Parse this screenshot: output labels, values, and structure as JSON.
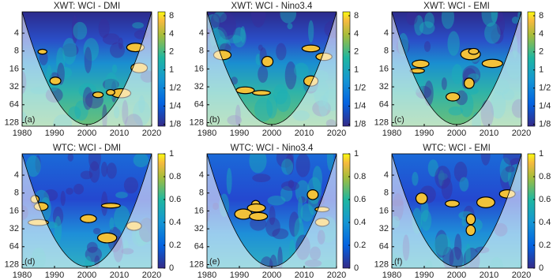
{
  "chart_data": [
    {
      "type": "heatmap",
      "kind": "xwt",
      "title": "XWT: WCI - DMI",
      "panel_label": "(a)",
      "xlim": [
        1980,
        2020
      ],
      "xticks": [
        1980,
        1990,
        2000,
        2010,
        2020
      ],
      "ylim": [
        1.75,
        147
      ],
      "y_log": true,
      "y_inverted": true,
      "yticks": [
        4,
        8,
        16,
        32,
        64,
        128
      ],
      "clim": [
        0.116,
        9.3
      ],
      "c_log": true,
      "cticks": [
        {
          "value": 0.125,
          "label": "1/8"
        },
        {
          "value": 0.25,
          "label": "1/4"
        },
        {
          "value": 0.5,
          "label": "1/2"
        },
        1,
        2,
        4,
        8
      ]
    },
    {
      "type": "heatmap",
      "kind": "xwt",
      "title": "XWT: WCI - Nino3.4",
      "panel_label": "(b)",
      "xlim": [
        1980,
        2020
      ],
      "xticks": [
        1980,
        1990,
        2000,
        2010,
        2020
      ],
      "ylim": [
        1.75,
        147
      ],
      "y_log": true,
      "y_inverted": true,
      "yticks": [
        4,
        8,
        16,
        32,
        64,
        128
      ],
      "clim": [
        0.116,
        9.3
      ],
      "c_log": true,
      "cticks": [
        {
          "value": 0.125,
          "label": "1/8"
        },
        {
          "value": 0.25,
          "label": "1/4"
        },
        {
          "value": 0.5,
          "label": "1/2"
        },
        1,
        2,
        4,
        8
      ]
    },
    {
      "type": "heatmap",
      "kind": "xwt",
      "title": "XWT: WCI - EMI",
      "panel_label": "(c)",
      "xlim": [
        1980,
        2020
      ],
      "xticks": [
        1980,
        1990,
        2000,
        2010,
        2020
      ],
      "ylim": [
        1.75,
        147
      ],
      "y_log": true,
      "y_inverted": true,
      "yticks": [
        4,
        8,
        16,
        32,
        64,
        128
      ],
      "clim": [
        0.116,
        9.3
      ],
      "c_log": true,
      "cticks": [
        {
          "value": 0.125,
          "label": "1/8"
        },
        {
          "value": 0.25,
          "label": "1/4"
        },
        {
          "value": 0.5,
          "label": "1/2"
        },
        1,
        2,
        4,
        8
      ]
    },
    {
      "type": "heatmap",
      "kind": "wtc",
      "title": "WTC: WCI - DMI",
      "panel_label": "(d)",
      "xlim": [
        1980,
        2020
      ],
      "xticks": [
        1980,
        1990,
        2000,
        2010,
        2020
      ],
      "ylim": [
        1.75,
        147
      ],
      "y_log": true,
      "y_inverted": true,
      "yticks": [
        4,
        8,
        16,
        32,
        64,
        128
      ],
      "clim": [
        0,
        1
      ],
      "c_log": false,
      "cticks": [
        0,
        0.2,
        0.4,
        0.6,
        0.8,
        1
      ]
    },
    {
      "type": "heatmap",
      "kind": "wtc",
      "title": "WTC: WCI - Nino3.4",
      "panel_label": "(e)",
      "xlim": [
        1980,
        2020
      ],
      "xticks": [
        1980,
        1990,
        2000,
        2010,
        2020
      ],
      "ylim": [
        1.75,
        147
      ],
      "y_log": true,
      "y_inverted": true,
      "yticks": [
        4,
        8,
        16,
        32,
        64,
        128
      ],
      "clim": [
        0,
        1
      ],
      "c_log": false,
      "cticks": [
        0,
        0.2,
        0.4,
        0.6,
        0.8,
        1
      ]
    },
    {
      "type": "heatmap",
      "kind": "wtc",
      "title": "WTC: WCI - EMI",
      "panel_label": "(f)",
      "xlim": [
        1980,
        2020
      ],
      "xticks": [
        1980,
        1990,
        2000,
        2010,
        2020
      ],
      "ylim": [
        1.75,
        147
      ],
      "y_log": true,
      "y_inverted": true,
      "yticks": [
        4,
        8,
        16,
        32,
        64,
        128
      ],
      "clim": [
        0,
        1
      ],
      "c_log": false,
      "cticks": [
        0,
        0.2,
        0.4,
        0.6,
        0.8,
        1
      ]
    }
  ]
}
